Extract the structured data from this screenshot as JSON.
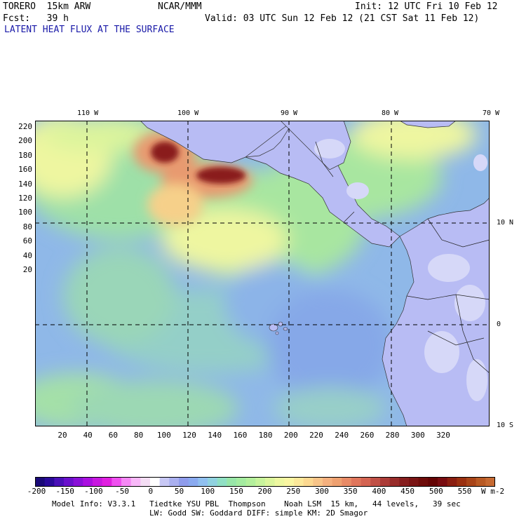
{
  "header": {
    "model": "TORERO  15km ARW",
    "org": "NCAR/MMM",
    "init": "Init: 12 UTC Fri 10 Feb 12",
    "fcst": "Fcst:   39 h",
    "valid": "Valid: 03 UTC Sun 12 Feb 12 (21 CST Sat 11 Feb 12)",
    "title": "LATENT HEAT FLUX AT THE SURFACE"
  },
  "lon_labels": [
    "110 W",
    "100 W",
    "90 W",
    "80 W",
    "70 W"
  ],
  "lat_labels": [
    "10 N",
    "0",
    "10 S"
  ],
  "y_ticks": [
    "220",
    "200",
    "180",
    "160",
    "140",
    "120",
    "100",
    "80",
    "60",
    "40",
    "20"
  ],
  "x_ticks": [
    "20",
    "40",
    "60",
    "80",
    "100",
    "120",
    "140",
    "160",
    "180",
    "200",
    "220",
    "240",
    "260",
    "280",
    "300",
    "320"
  ],
  "colorbar": {
    "labels": [
      "-200",
      "-150",
      "-100",
      "-50",
      "0",
      "50",
      "100",
      "150",
      "200",
      "250",
      "300",
      "350",
      "400",
      "450",
      "500",
      "550"
    ],
    "units": "W m-2",
    "colors": [
      "#1a0a78",
      "#2a0a9a",
      "#4a10b8",
      "#6a10cc",
      "#8a10d8",
      "#aa10e0",
      "#c818e0",
      "#e020e0",
      "#f050f0",
      "#f588f5",
      "#f8b8f8",
      "#f4ddf4",
      "#ffffff",
      "#c8c8f5",
      "#aab0f0",
      "#8f9cec",
      "#8aaaf0",
      "#90c0f0",
      "#90d2e0",
      "#90e0c4",
      "#98e6a8",
      "#a4eca0",
      "#b4f09c",
      "#c8f49c",
      "#dcf69c",
      "#eef8a0",
      "#faf6a2",
      "#fce89a",
      "#fcd890",
      "#f8c488",
      "#f4b07e",
      "#eea070",
      "#e88a66",
      "#e0765c",
      "#d46452",
      "#c05046",
      "#ac3c38",
      "#982c2a",
      "#861e1e",
      "#7a1414",
      "#6e0c0a",
      "#640404",
      "#780c10",
      "#8a1e10",
      "#9a3010",
      "#a84418",
      "#b85a24",
      "#c66a32"
    ]
  },
  "footer": {
    "line1": "Model Info: V3.3.1   Tiedtke YSU PBL  Thompson    Noah LSM  15 km,   44 levels,   39 sec",
    "line2": "LW: Godd SW: Goddard DIFF: simple KM: 2D Smagor"
  },
  "legend_colors": {
    "land": "#b8bcf4",
    "land_light": "#d6d8f8",
    "ocean_base": "#8fb8e8",
    "ocean_green": "#9ee0a8",
    "ocean_yellow": "#eef6a0",
    "hot": "#d8805a",
    "hotter": "#8a1e1e"
  }
}
